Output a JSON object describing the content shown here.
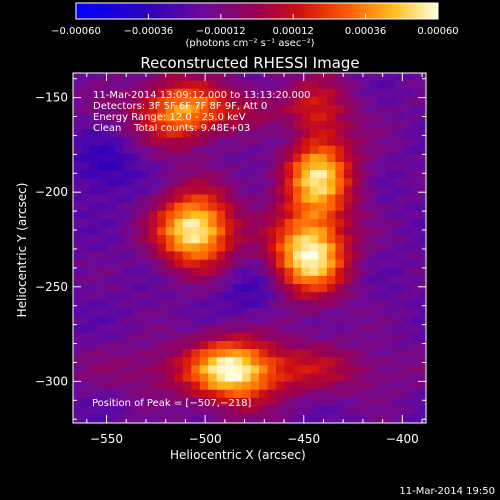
{
  "chart_data": {
    "type": "heatmap",
    "title": "Reconstructed RHESSI Image",
    "xlabel": "Heliocentric X (arcsec)",
    "ylabel": "Heliocentric Y (arcsec)",
    "xlim": [
      -567,
      -388
    ],
    "ylim": [
      -322,
      -137
    ],
    "x_ticks": [
      -550,
      -500,
      -450,
      -400
    ],
    "y_ticks": [
      -150,
      -200,
      -250,
      -300
    ],
    "x_tick_labels": [
      "−550",
      "−500",
      "−450",
      "−400"
    ],
    "y_tick_labels": [
      "−150",
      "−200",
      "−250",
      "−300"
    ],
    "colorbar": {
      "ticks": [
        "−0.00060",
        "−0.00036",
        "−0.00012",
        "0.00012",
        "0.00036",
        "0.00060"
      ],
      "tick_values": [
        -0.0006,
        -0.00036,
        -0.00012,
        0.00012,
        0.00036,
        0.0006
      ],
      "range": [
        -0.0006,
        0.0006
      ],
      "unit": "(photons cm⁻² s⁻¹ asec⁻²)"
    },
    "sources": [
      {
        "x": -507,
        "y": -218,
        "rel_intensity": 1.0
      },
      {
        "x": -450,
        "y": -232,
        "rel_intensity": 0.85
      },
      {
        "x": -488,
        "y": -293,
        "rel_intensity": 0.6
      },
      {
        "x": -445,
        "y": -190,
        "rel_intensity": 0.55
      },
      {
        "x": -515,
        "y": -155,
        "rel_intensity": 0.5
      }
    ],
    "peak_position": [
      -507,
      -218
    ]
  },
  "annotations": {
    "line1": "11-Mar-2014 13:09:12.000 to 13:13:20.000",
    "line2": "Detectors: 3F 5F 6F 7F 8F 9F, Att 0",
    "line3": "Energy Range: 12.0 - 25.0 keV",
    "line4": "Clean    Total counts: 9.48E+03",
    "peak": "Position of Peak = [−507,−218]"
  },
  "footer_date": "11-Mar-2014 19:50"
}
